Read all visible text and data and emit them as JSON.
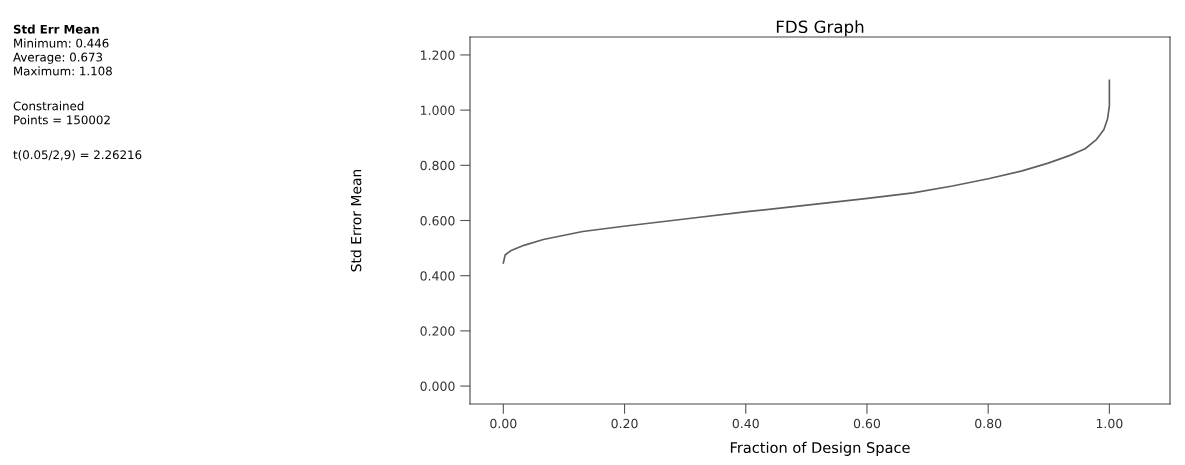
{
  "chart_data": {
    "type": "line",
    "title": "FDS Graph",
    "xlabel": "Fraction of Design Space",
    "ylabel": "Std Error Mean",
    "x": [
      0,
      0.003,
      0.012,
      0.034,
      0.066,
      0.131,
      0.202,
      0.31,
      0.402,
      0.49,
      0.601,
      0.676,
      0.741,
      0.802,
      0.856,
      0.899,
      0.935,
      0.96,
      0.978,
      0.991,
      0.997,
      1.0,
      1.0
    ],
    "series": [
      {
        "color": "#606060",
        "values": [
          0.446,
          0.475,
          0.49,
          0.51,
          0.531,
          0.56,
          0.58,
          0.608,
          0.632,
          0.653,
          0.68,
          0.7,
          0.725,
          0.752,
          0.78,
          0.808,
          0.836,
          0.86,
          0.892,
          0.93,
          0.969,
          1.016,
          1.108
        ]
      }
    ],
    "xlim": [
      -0.055,
      1.1
    ],
    "ylim": [
      -0.065,
      1.265
    ],
    "xticks": [
      {
        "value": 0,
        "label": "0.00"
      },
      {
        "value": 0.2,
        "label": "0.20"
      },
      {
        "value": 0.4,
        "label": "0.40"
      },
      {
        "value": 0.6,
        "label": "0.60"
      },
      {
        "value": 0.8,
        "label": "0.80"
      },
      {
        "value": 1,
        "label": "1.00"
      }
    ],
    "yticks": [
      {
        "value": 0,
        "label": "0.000"
      },
      {
        "value": 0.2,
        "label": "0.200"
      },
      {
        "value": 0.4,
        "label": "0.400"
      },
      {
        "value": 0.6,
        "label": "0.600"
      },
      {
        "value": 0.8,
        "label": "0.800"
      },
      {
        "value": 1,
        "label": "1.000"
      },
      {
        "value": 1.2,
        "label": "1.200"
      }
    ],
    "grid": false,
    "legend": false,
    "marker": "none",
    "line_style": "solid",
    "annotations": [
      "Std Err Mean",
      "Minimum: 0.446",
      "Average: 0.673",
      "Maximum: 1.108",
      "Constrained",
      "Points = 150002",
      "t(0.05/2,9) = 2.26216"
    ]
  }
}
